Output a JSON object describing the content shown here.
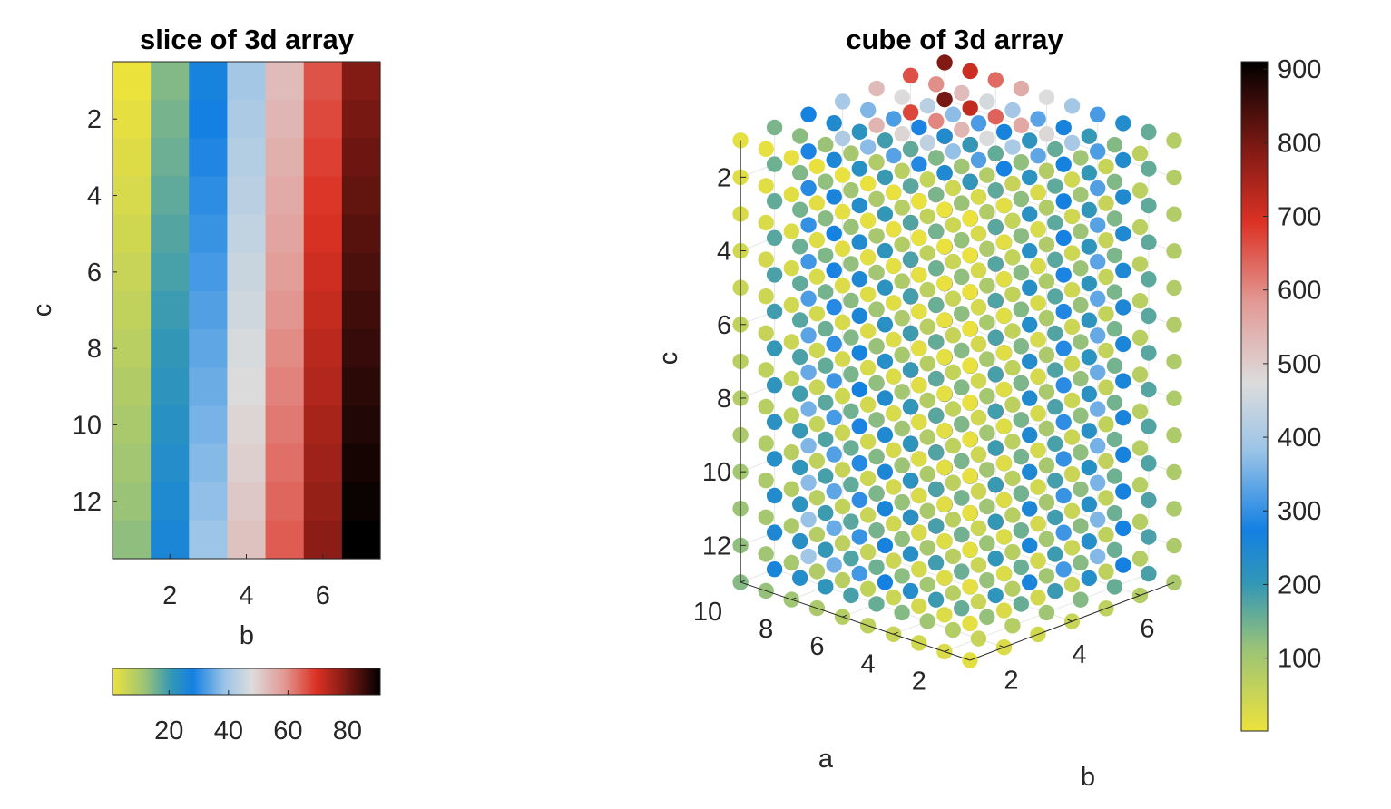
{
  "chart_data": [
    {
      "type": "heatmap",
      "title": "slice of 3d array",
      "xlabel": "b",
      "ylabel": "c",
      "xticks": [
        "2",
        "4",
        "6"
      ],
      "yticks": [
        "2",
        "4",
        "6",
        "8",
        "10",
        "12"
      ],
      "xlim": [
        0.5,
        7.5
      ],
      "ylim": [
        0.5,
        13.5
      ],
      "y_reversed": true,
      "columns": 7,
      "rows": 13,
      "value_formula": "value = c + 13*(b-1)",
      "clim": [
        1,
        91
      ],
      "colorbar": {
        "orientation": "horizontal",
        "placement": "below",
        "ticks": [
          "20",
          "40",
          "60",
          "80"
        ]
      }
    },
    {
      "type": "scatter",
      "title": "cube of 3d array",
      "xlabel": "b",
      "ylabel": "a",
      "zlabel": "c",
      "a_ticks": [
        "2",
        "4",
        "6",
        "8",
        "10"
      ],
      "b_ticks": [
        "2",
        "4",
        "6"
      ],
      "c_ticks": [
        "2",
        "4",
        "6",
        "8",
        "10",
        "12"
      ],
      "a_range": [
        1,
        10
      ],
      "b_range": [
        1,
        7
      ],
      "c_range": [
        1,
        13
      ],
      "c_reversed": true,
      "grid": true,
      "value_formula": "value = (c + 13*(b-1)) * a",
      "clim": [
        1,
        910
      ],
      "colorbar": {
        "orientation": "vertical",
        "placement": "right",
        "ticks": [
          "100",
          "200",
          "300",
          "400",
          "500",
          "600",
          "700",
          "800",
          "900"
        ]
      }
    }
  ],
  "colormap_stops": [
    {
      "t": 0.0,
      "color": "#ece23c"
    },
    {
      "t": 0.12,
      "color": "#9dc476"
    },
    {
      "t": 0.22,
      "color": "#3397b6"
    },
    {
      "t": 0.3,
      "color": "#1380e2"
    },
    {
      "t": 0.42,
      "color": "#9cc4e7"
    },
    {
      "t": 0.52,
      "color": "#dcdcdc"
    },
    {
      "t": 0.64,
      "color": "#e29a95"
    },
    {
      "t": 0.76,
      "color": "#dc3224"
    },
    {
      "t": 0.87,
      "color": "#7f1a14"
    },
    {
      "t": 1.0,
      "color": "#000000"
    }
  ]
}
